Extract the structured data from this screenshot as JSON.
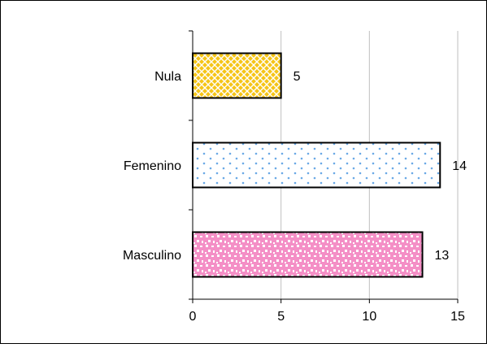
{
  "chart_data": {
    "type": "bar",
    "orientation": "horizontal",
    "categories": [
      "Nula",
      "Femenino",
      "Masculino"
    ],
    "values": [
      5,
      14,
      13
    ],
    "data_labels": [
      "5",
      "14",
      "13"
    ],
    "title": "",
    "xlabel": "",
    "ylabel": "",
    "xlim": [
      0,
      15
    ],
    "x_ticks": [
      0,
      5,
      10,
      15
    ],
    "x_tick_labels": [
      "0",
      "5",
      "10",
      "15"
    ],
    "grid": "vertical",
    "legend": "none",
    "bar_colors": [
      "#f5c518",
      "#ffffff",
      "#f48fc6"
    ],
    "bar_pattern_colors": [
      "#ffffff",
      "#6aa9e6",
      "#ffffff"
    ],
    "bar_patterns": [
      "lattice",
      "dots",
      "confetti"
    ]
  }
}
